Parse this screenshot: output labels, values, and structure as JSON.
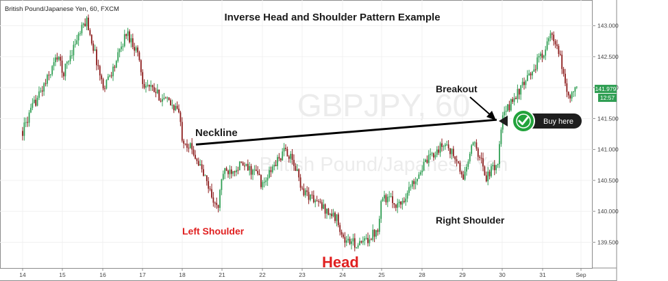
{
  "symbol_label": "British Pound/Japanese Yen, 60, FXCM",
  "watermark": {
    "line1": "GBPJPY, 60",
    "line2": "British Pound/Japanese Yen"
  },
  "chart_data": {
    "type": "candlestick",
    "title": "Inverse Head and Shoulder Pattern Example",
    "xlabel": "",
    "ylabel": "",
    "x_ticks": [
      "14",
      "15",
      "16",
      "17",
      "18",
      "21",
      "22",
      "23",
      "24",
      "25",
      "28",
      "29",
      "30",
      "31",
      "Sep"
    ],
    "y_ticks": [
      139.5,
      140.0,
      140.5,
      141.0,
      141.5,
      142.0,
      142.5,
      143.0
    ],
    "ylim": [
      139.15,
      143.35
    ],
    "grid": true,
    "current_price": {
      "value": "141.979",
      "time": "12:57"
    },
    "buy_label": "Buy here",
    "annotations": [
      {
        "name": "neckline",
        "text": "Neckline"
      },
      {
        "name": "left-shoulder",
        "text": "Left Shoulder"
      },
      {
        "name": "head",
        "text": "Head"
      },
      {
        "name": "right-shoulder",
        "text": "Right Shoulder"
      },
      {
        "name": "breakout",
        "text": "Breakout"
      }
    ],
    "neckline": {
      "from": [
        "18",
        141.08
      ],
      "to": [
        "30",
        141.48
      ]
    },
    "price_path": [
      [
        "14",
        141.3
      ],
      [
        "14",
        141.75
      ],
      [
        "14",
        142.1
      ],
      [
        "14",
        142.55
      ],
      [
        "15",
        142.2
      ],
      [
        "15",
        142.7
      ],
      [
        "15",
        143.1
      ],
      [
        "15",
        142.3
      ],
      [
        "16",
        142.0
      ],
      [
        "16",
        142.35
      ],
      [
        "16",
        142.9
      ],
      [
        "16",
        142.55
      ],
      [
        "17",
        142.1
      ],
      [
        "17",
        141.85
      ],
      [
        "17",
        141.65
      ],
      [
        "18",
        141.2
      ],
      [
        "18",
        140.95
      ],
      [
        "18",
        140.5
      ],
      [
        "18",
        140.0
      ],
      [
        "21",
        140.6
      ],
      [
        "21",
        140.75
      ],
      [
        "21",
        140.6
      ],
      [
        "22",
        140.4
      ],
      [
        "22",
        140.75
      ],
      [
        "22",
        141.0
      ],
      [
        "22",
        140.6
      ],
      [
        "23",
        140.35
      ],
      [
        "23",
        140.1
      ],
      [
        "23",
        139.85
      ],
      [
        "24",
        139.55
      ],
      [
        "24",
        139.45
      ],
      [
        "24",
        139.7
      ],
      [
        "25",
        140.25
      ],
      [
        "25",
        140.1
      ],
      [
        "25",
        140.6
      ],
      [
        "28",
        140.7
      ],
      [
        "28",
        140.95
      ],
      [
        "28",
        141.1
      ],
      [
        "28",
        140.75
      ],
      [
        "29",
        140.5
      ],
      [
        "29",
        141.15
      ],
      [
        "29",
        140.55
      ],
      [
        "29",
        140.8
      ],
      [
        "30",
        141.5
      ],
      [
        "30",
        141.85
      ],
      [
        "30",
        142.1
      ],
      [
        "30",
        142.45
      ],
      [
        "31",
        142.55
      ],
      [
        "31",
        142.85
      ],
      [
        "31",
        142.5
      ],
      [
        "31",
        141.85
      ],
      [
        "31",
        141.98
      ]
    ]
  }
}
